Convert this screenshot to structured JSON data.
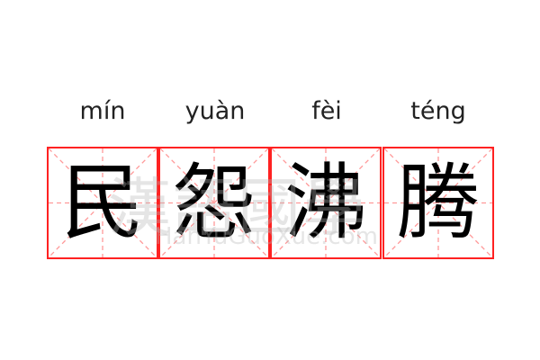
{
  "words": [
    {
      "pinyin": "mín",
      "hanzi": "民"
    },
    {
      "pinyin": "yuàn",
      "hanzi": "怨"
    },
    {
      "pinyin": "fèi",
      "hanzi": "沸"
    },
    {
      "pinyin": "téng",
      "hanzi": "腾"
    }
  ],
  "watermark": {
    "chinese": "漢語國學",
    "latin": "HanYuGuoXue.com"
  },
  "colors": {
    "grid_border": "#ff2222",
    "guide_lines": "#ff9999",
    "text": "#000000"
  }
}
